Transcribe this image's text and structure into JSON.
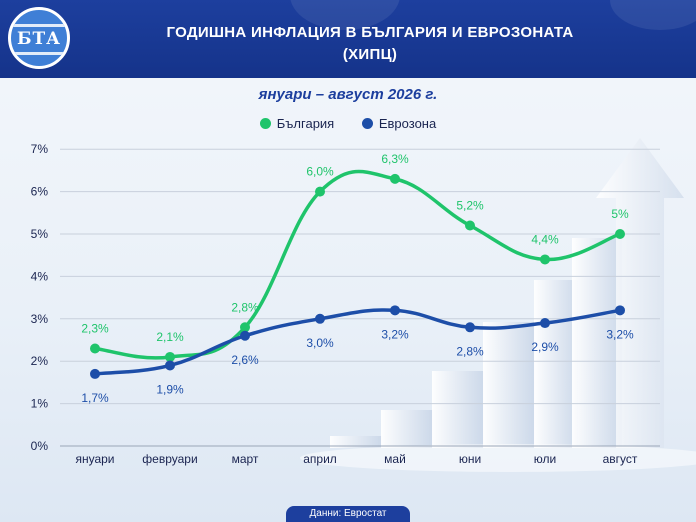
{
  "header": {
    "logo_text": "БТА",
    "title_line1": "ГОДИШНА ИНФЛАЦИЯ В БЪЛГАРИЯ И ЕВРОЗОНАТА",
    "title_line2": "(ХИПЦ)"
  },
  "footer": {
    "source": "Данни: Евростат"
  },
  "colors": {
    "bulgaria": "#1fc46b",
    "eurozone": "#1d4ea8",
    "header": "#1d3f9e"
  },
  "chart_data": {
    "type": "line",
    "title": "януари – август 2026 г.",
    "categories": [
      "януари",
      "февруари",
      "март",
      "април",
      "май",
      "юни",
      "юли",
      "август"
    ],
    "series": [
      {
        "name": "България",
        "values": [
          2.3,
          2.1,
          2.8,
          6.0,
          6.3,
          5.2,
          4.4,
          5.0
        ],
        "labels": [
          "2,3%",
          "2,1%",
          "2,8%",
          "6,0%",
          "6,3%",
          "5,2%",
          "4,4%",
          "5%"
        ]
      },
      {
        "name": "Еврозона",
        "values": [
          1.7,
          1.9,
          2.6,
          3.0,
          3.2,
          2.8,
          2.9,
          3.2
        ],
        "labels": [
          "1,7%",
          "1,9%",
          "2,6%",
          "3,0%",
          "3,2%",
          "2,8%",
          "2,9%",
          "3,2%"
        ]
      }
    ],
    "yticks": [
      "0%",
      "1%",
      "2%",
      "3%",
      "4%",
      "5%",
      "6%",
      "7%"
    ],
    "ylim": [
      0,
      7
    ],
    "xlabel": "",
    "ylabel": "",
    "grid": true,
    "legend": "top-center"
  }
}
